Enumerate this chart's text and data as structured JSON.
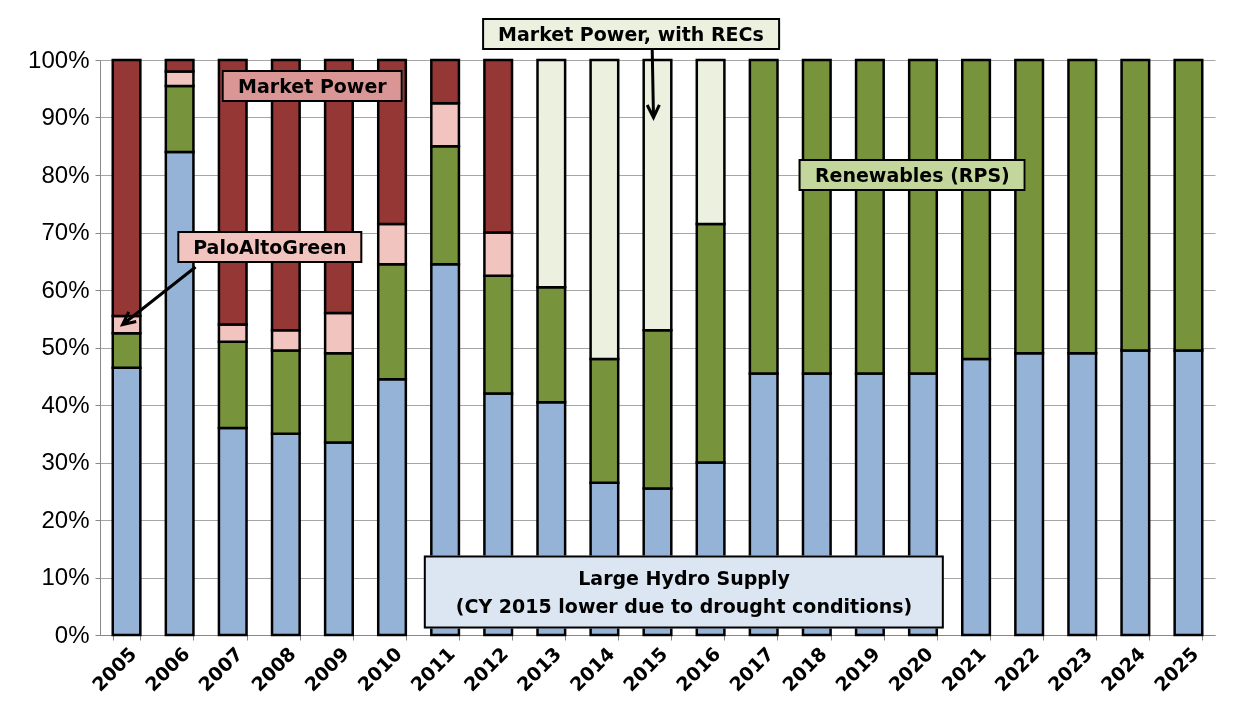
{
  "chart_data": {
    "type": "bar",
    "stacked": true,
    "categories": [
      "2005",
      "2006",
      "2007",
      "2008",
      "2009",
      "2010",
      "2011",
      "2012",
      "2013",
      "2014",
      "2015",
      "2016",
      "2017",
      "2018",
      "2019",
      "2020",
      "2021",
      "2022",
      "2023",
      "2024",
      "2025"
    ],
    "series": [
      {
        "name": "Large Hydro Supply",
        "color": "#95b3d7",
        "values": [
          46.5,
          84,
          36,
          35,
          33.5,
          44.5,
          64.5,
          42,
          40.5,
          26.5,
          25.5,
          30,
          45.5,
          45.5,
          45.5,
          45.5,
          48,
          49,
          49,
          49.5,
          49.5
        ]
      },
      {
        "name": "Renewables (RPS)",
        "color": "#77933c",
        "values": [
          6,
          11.5,
          15,
          14.5,
          15.5,
          20,
          20.5,
          20.5,
          20,
          21.5,
          27.5,
          41.5,
          54.5,
          54.5,
          54.5,
          54.5,
          52,
          51,
          51,
          50.5,
          50.5
        ]
      },
      {
        "name": "PaloAltoGreen",
        "color": "#f2c4c0",
        "values": [
          3,
          2.5,
          3,
          3.5,
          7,
          7,
          7.5,
          7.5,
          null,
          null,
          null,
          null,
          null,
          null,
          null,
          null,
          null,
          null,
          null,
          null,
          null
        ]
      },
      {
        "name": "Market Power",
        "color": "#953735",
        "values": [
          44.5,
          2,
          46,
          47,
          44,
          28.5,
          7.5,
          30,
          null,
          null,
          null,
          null,
          null,
          null,
          null,
          null,
          null,
          null,
          null,
          null,
          null
        ]
      },
      {
        "name": "Market Power, with RECs",
        "color": "#ebf1de",
        "values": [
          null,
          null,
          null,
          null,
          null,
          null,
          null,
          null,
          39.5,
          52,
          47,
          28.5,
          null,
          null,
          null,
          null,
          null,
          null,
          null,
          null,
          null
        ]
      }
    ],
    "annotations": [
      "(CY 2015 lower due to drought conditions)"
    ],
    "ylim": [
      0,
      100
    ],
    "yticks": [
      {
        "value": 0,
        "label": "0%"
      },
      {
        "value": 10,
        "label": "10%"
      },
      {
        "value": 20,
        "label": "20%"
      },
      {
        "value": 30,
        "label": "30%"
      },
      {
        "value": 40,
        "label": "40%"
      },
      {
        "value": 50,
        "label": "50%"
      },
      {
        "value": 60,
        "label": "60%"
      },
      {
        "value": 70,
        "label": "70%"
      },
      {
        "value": 80,
        "label": "80%"
      },
      {
        "value": 90,
        "label": "90%"
      },
      {
        "value": 100,
        "label": "100%"
      }
    ],
    "grid": "y",
    "legend": false
  }
}
